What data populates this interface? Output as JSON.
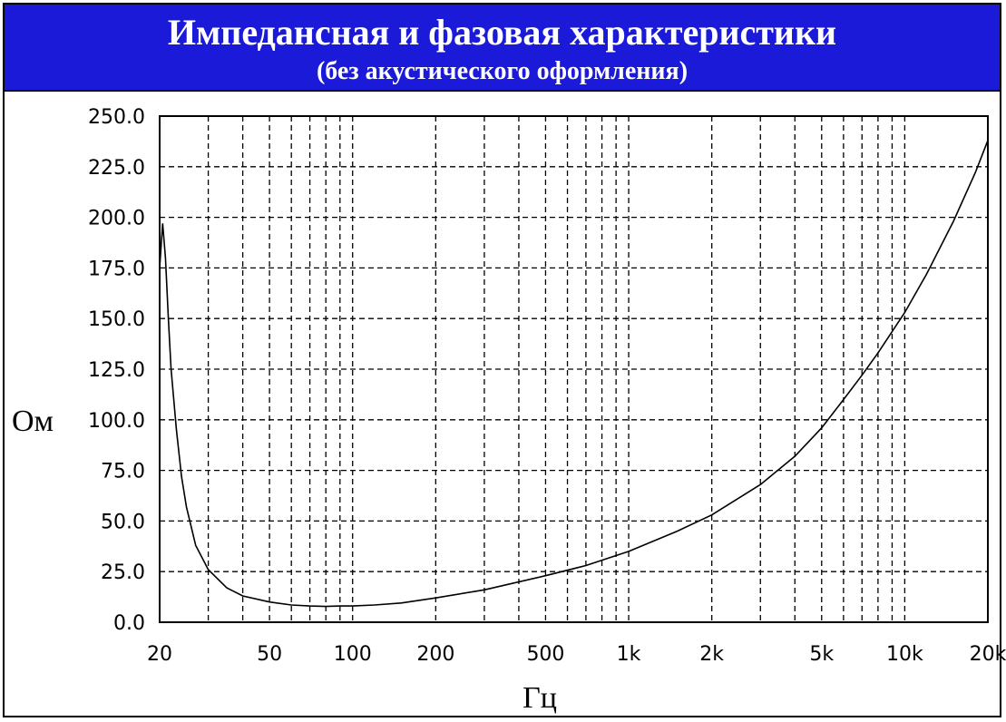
{
  "header": {
    "title": "Импедансная и фазовая характеристики",
    "subtitle": "(без акустического оформления)"
  },
  "colors": {
    "header_bg": "#1a1ad8",
    "header_text": "#ffffff",
    "curve": "#000000",
    "grid": "#000000"
  },
  "chart_data": {
    "type": "line",
    "xlabel": "Гц",
    "ylabel": "Ом",
    "x_scale": "log",
    "xlim": [
      20,
      20000
    ],
    "ylim": [
      0,
      250
    ],
    "grid": true,
    "x_tick_labels": [
      {
        "value": 20,
        "label": "20"
      },
      {
        "value": 50,
        "label": "50"
      },
      {
        "value": 100,
        "label": "100"
      },
      {
        "value": 200,
        "label": "200"
      },
      {
        "value": 500,
        "label": "500"
      },
      {
        "value": 1000,
        "label": "1k"
      },
      {
        "value": 2000,
        "label": "2k"
      },
      {
        "value": 5000,
        "label": "5k"
      },
      {
        "value": 10000,
        "label": "10k"
      },
      {
        "value": 20000,
        "label": "20k"
      }
    ],
    "y_tick_labels": [
      "0.0",
      "25.0",
      "50.0",
      "75.0",
      "100.0",
      "125.0",
      "150.0",
      "175.0",
      "200.0",
      "225.0",
      "250.0"
    ],
    "series": [
      {
        "x": [
          20,
          20.5,
          21,
          21.5,
          22,
          23,
          24,
          25,
          27,
          30,
          35,
          40,
          50,
          60,
          70,
          80,
          90,
          100,
          120,
          150,
          200,
          300,
          500,
          700,
          1000,
          1500,
          2000,
          3000,
          4000,
          5000,
          6000,
          7000,
          8000,
          10000,
          12000,
          15000,
          18000,
          20000
        ],
        "y": [
          175,
          197,
          180,
          150,
          125,
          95,
          72,
          57,
          38,
          26,
          17,
          13,
          10,
          8.5,
          8,
          7.8,
          8,
          8,
          8.5,
          9.5,
          12,
          16,
          23,
          28,
          35,
          45,
          53,
          68,
          82,
          96,
          110,
          122,
          133,
          153,
          172,
          198,
          222,
          238
        ]
      }
    ]
  }
}
